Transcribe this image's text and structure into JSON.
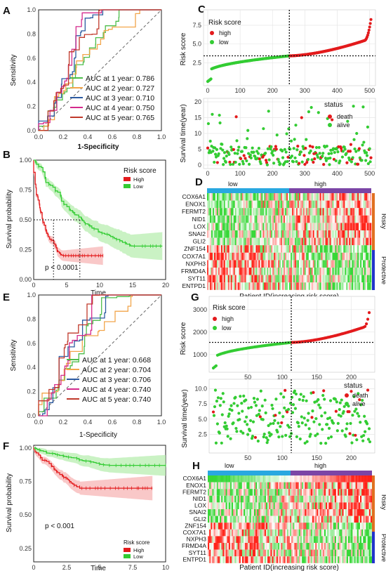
{
  "panel_labels": [
    "A",
    "B",
    "C",
    "D",
    "E",
    "F",
    "G",
    "H"
  ],
  "colors": {
    "auc": [
      "#4dbd4a",
      "#f2a54a",
      "#2c5aa0",
      "#d42a8c",
      "#c0392b"
    ],
    "high_red": "#e31a1c",
    "low_green": "#33cc33",
    "km_high_band": "#f7b6b6",
    "km_low_band": "#b8eeb0",
    "heat_low_bar": "#29a8e0",
    "heat_high_bar": "#7b45a6",
    "risky_bar": "#e07020",
    "protective_bar": "#2233cc"
  },
  "panel_a": {
    "ylabel": "Sensitivity",
    "xlabel": "1-Specificity",
    "ticks": [
      "0.0",
      "0.2",
      "0.4",
      "0.6",
      "0.8",
      "1.0"
    ],
    "legend": [
      "AUC at 1 year: 0.786",
      "AUC at 2 year: 0.727",
      "AUC at 3 year: 0.710",
      "AUC at 4 year: 0.750",
      "AUC at 5 year: 0.765"
    ]
  },
  "panel_b": {
    "ylabel": "Survival probability",
    "xlabel": "Time",
    "xticks": [
      "0",
      "5",
      "10",
      "15",
      "20"
    ],
    "yticks": [
      "0.00",
      "0.25",
      "0.50",
      "0.75",
      "1.00"
    ],
    "legend_title": "Risk score",
    "legend": [
      "High",
      "Low"
    ],
    "pvalue": "p < 0.0001"
  },
  "panel_c": {
    "ylabel_top": "Risk score",
    "legend_title_top": "Risk score",
    "legend_top": [
      "high",
      "low"
    ],
    "yticks_top": [
      "2.5",
      "5.0",
      "7.5"
    ],
    "xticks": [
      "0",
      "100",
      "200",
      "300",
      "400",
      "500"
    ],
    "ylabel_bottom": "Survival time(year)",
    "yticks_bottom": [
      "0",
      "5",
      "10",
      "15",
      "20"
    ],
    "legend_title_bottom": "status",
    "legend_bottom": [
      "death",
      "alive"
    ]
  },
  "panel_d": {
    "group_labels": [
      "low",
      "high"
    ],
    "genes": [
      "COX6A1",
      "ENOX1",
      "FERMT2",
      "NID1",
      "LOX",
      "SNAI2",
      "GLI2",
      "ZNF154",
      "COX7A1",
      "NXPH3",
      "FRMD4A",
      "SYT11",
      "ENTPD1"
    ],
    "side_labels": [
      "Risky",
      "Protective"
    ],
    "xlabel": "Patient ID(increasing risk score)"
  },
  "panel_e": {
    "ylabel": "Sensitivity",
    "xlabel": "1-Specificity",
    "ticks": [
      "0.0",
      "0.2",
      "0.4",
      "0.6",
      "0.8",
      "1.0"
    ],
    "legend": [
      "AUC at 1 year: 0.668",
      "AUC at 2 year: 0.704",
      "AUC at 3 year: 0.706",
      "AUC at 4 year: 0.740",
      "AUC at 5 year: 0.740"
    ]
  },
  "panel_f": {
    "ylabel": "Survival probability",
    "xlabel": "Time",
    "xticks": [
      "0",
      "2.5",
      "5",
      "7.5",
      "10"
    ],
    "yticks": [
      "0.25",
      "0.50",
      "0.75",
      "1.00"
    ],
    "legend_title": "Risk score",
    "legend": [
      "High",
      "Low"
    ],
    "pvalue": "p < 0.001"
  },
  "panel_g": {
    "ylabel_top": "Risk score",
    "legend_title_top": "Risk score",
    "legend_top": [
      "high",
      "low"
    ],
    "yticks_top": [
      "1000",
      "2000",
      "3000"
    ],
    "xticks": [
      "50",
      "100",
      "150",
      "200"
    ],
    "ylabel_bottom": "Survival time(year)",
    "yticks_bottom": [
      "2.5",
      "5.0",
      "7.5",
      "10.0"
    ],
    "legend_title_bottom": "status",
    "legend_bottom": [
      "death",
      "alive"
    ]
  },
  "panel_h": {
    "group_labels": [
      "low",
      "high"
    ],
    "genes": [
      "COX6A1",
      "ENOX1",
      "FERMT2",
      "NID1",
      "LOX",
      "SNAI2",
      "GLI2",
      "ZNF154",
      "COX7A1",
      "NXPH3",
      "FRMD4A",
      "SYT11",
      "ENTPD1"
    ],
    "side_labels": [
      "Risky",
      "Protective"
    ],
    "xlabel": "Patient ID(increasing risk score)"
  }
}
